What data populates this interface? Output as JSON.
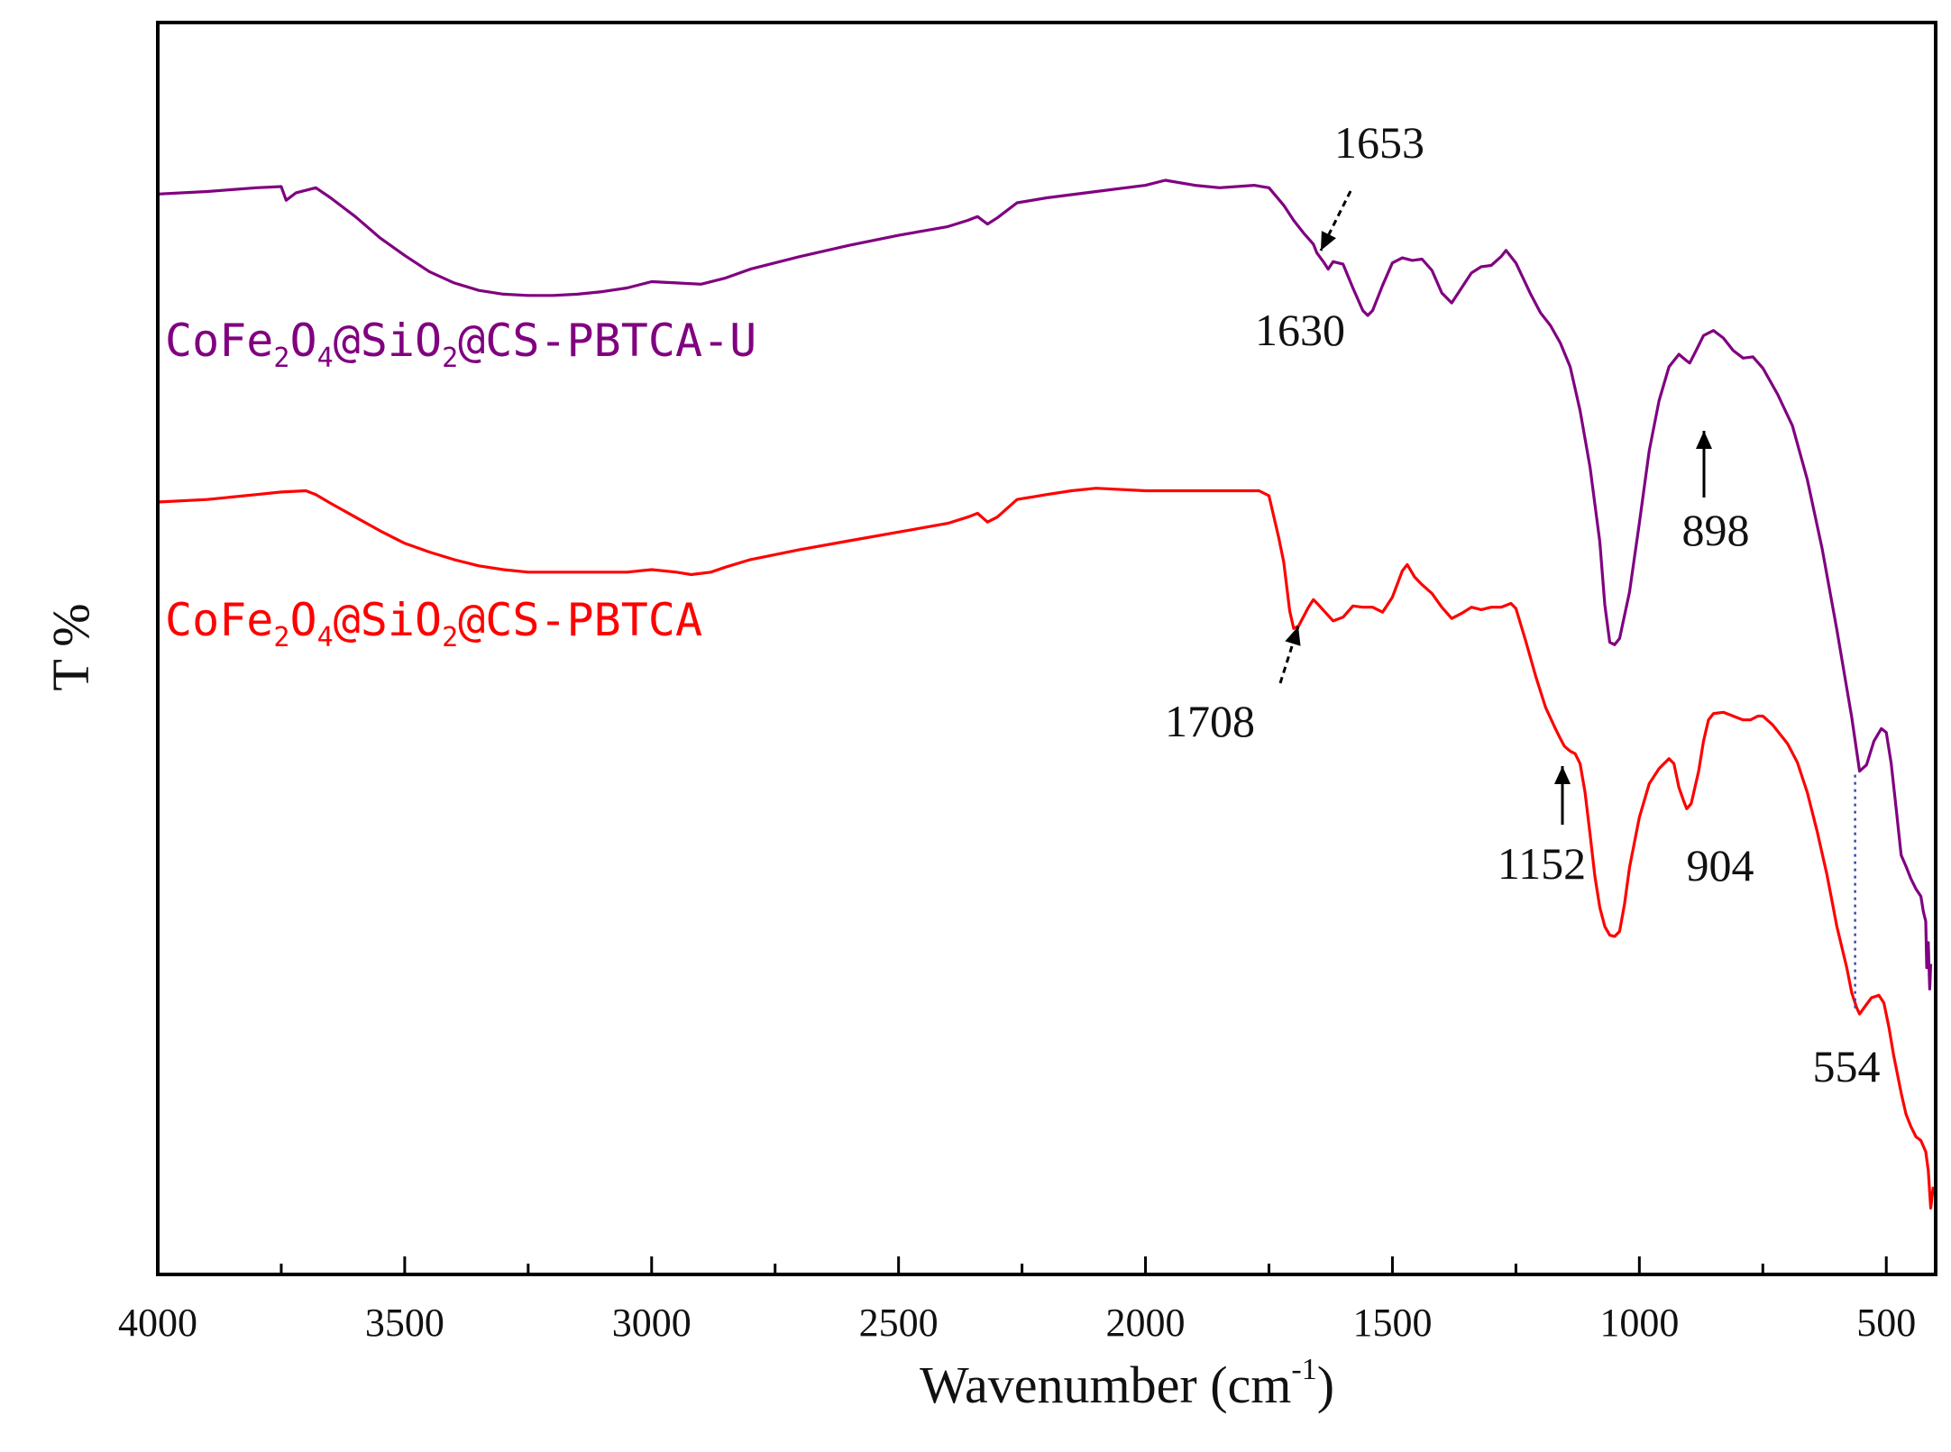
{
  "chart_data": {
    "type": "line",
    "title": "",
    "xlabel": "Wavenumber (cm",
    "xlabel_sup": "-1",
    "xlabel_close": ")",
    "ylabel": "T %",
    "xlim": [
      4000,
      400
    ],
    "x_reversed": true,
    "ylim": [
      0,
      100
    ],
    "y_ticks_shown": false,
    "x_ticks": [
      4000,
      3500,
      3000,
      2500,
      2000,
      1500,
      1000,
      500
    ],
    "x_tick_labels": [
      "4000",
      "3500",
      "3000",
      "2500",
      "2000",
      "1500",
      "1000",
      "500"
    ],
    "series": [
      {
        "name": "CoFe2O4@SiO2@CS-PBTCA-U",
        "label_parts": [
          "CoFe",
          "2",
          "O",
          "4",
          "@SiO",
          "2",
          "@CS-PBTCA-U"
        ],
        "color": "#800080",
        "points": [
          [
            4000,
            86.3
          ],
          [
            3900,
            86.5
          ],
          [
            3800,
            86.8
          ],
          [
            3750,
            86.9
          ],
          [
            3740,
            85.8
          ],
          [
            3720,
            86.4
          ],
          [
            3680,
            86.8
          ],
          [
            3650,
            86.0
          ],
          [
            3600,
            84.5
          ],
          [
            3550,
            82.8
          ],
          [
            3500,
            81.4
          ],
          [
            3450,
            80.1
          ],
          [
            3400,
            79.2
          ],
          [
            3350,
            78.6
          ],
          [
            3300,
            78.3
          ],
          [
            3250,
            78.2
          ],
          [
            3200,
            78.2
          ],
          [
            3150,
            78.3
          ],
          [
            3100,
            78.5
          ],
          [
            3050,
            78.8
          ],
          [
            3000,
            79.3
          ],
          [
            2950,
            79.2
          ],
          [
            2900,
            79.1
          ],
          [
            2850,
            79.6
          ],
          [
            2800,
            80.3
          ],
          [
            2700,
            81.3
          ],
          [
            2600,
            82.2
          ],
          [
            2500,
            83.0
          ],
          [
            2400,
            83.7
          ],
          [
            2360,
            84.2
          ],
          [
            2340,
            84.5
          ],
          [
            2320,
            83.9
          ],
          [
            2300,
            84.4
          ],
          [
            2260,
            85.6
          ],
          [
            2200,
            86.0
          ],
          [
            2100,
            86.5
          ],
          [
            2000,
            87.0
          ],
          [
            1960,
            87.4
          ],
          [
            1900,
            87.0
          ],
          [
            1850,
            86.8
          ],
          [
            1780,
            87.0
          ],
          [
            1750,
            86.8
          ],
          [
            1720,
            85.4
          ],
          [
            1700,
            84.2
          ],
          [
            1680,
            83.2
          ],
          [
            1660,
            82.3
          ],
          [
            1653,
            81.6
          ],
          [
            1640,
            80.9
          ],
          [
            1630,
            80.3
          ],
          [
            1620,
            80.9
          ],
          [
            1600,
            80.7
          ],
          [
            1580,
            78.8
          ],
          [
            1560,
            77.0
          ],
          [
            1550,
            76.6
          ],
          [
            1540,
            77.0
          ],
          [
            1520,
            79.0
          ],
          [
            1500,
            80.8
          ],
          [
            1480,
            81.2
          ],
          [
            1460,
            81.0
          ],
          [
            1440,
            81.1
          ],
          [
            1420,
            80.2
          ],
          [
            1400,
            78.4
          ],
          [
            1380,
            77.6
          ],
          [
            1360,
            78.8
          ],
          [
            1340,
            80.0
          ],
          [
            1320,
            80.5
          ],
          [
            1300,
            80.6
          ],
          [
            1280,
            81.3
          ],
          [
            1270,
            81.8
          ],
          [
            1250,
            80.8
          ],
          [
            1220,
            78.3
          ],
          [
            1200,
            76.8
          ],
          [
            1180,
            75.8
          ],
          [
            1160,
            74.4
          ],
          [
            1140,
            72.5
          ],
          [
            1120,
            69.0
          ],
          [
            1100,
            64.5
          ],
          [
            1080,
            58.5
          ],
          [
            1070,
            53.5
          ],
          [
            1060,
            50.5
          ],
          [
            1050,
            50.3
          ],
          [
            1040,
            50.8
          ],
          [
            1020,
            54.5
          ],
          [
            1000,
            60.0
          ],
          [
            980,
            65.8
          ],
          [
            960,
            69.8
          ],
          [
            940,
            72.5
          ],
          [
            920,
            73.5
          ],
          [
            905,
            73.0
          ],
          [
            898,
            72.8
          ],
          [
            885,
            73.8
          ],
          [
            870,
            75.0
          ],
          [
            850,
            75.4
          ],
          [
            830,
            74.8
          ],
          [
            810,
            73.8
          ],
          [
            790,
            73.2
          ],
          [
            770,
            73.3
          ],
          [
            750,
            72.4
          ],
          [
            720,
            70.3
          ],
          [
            690,
            67.8
          ],
          [
            660,
            63.5
          ],
          [
            630,
            58.0
          ],
          [
            600,
            51.5
          ],
          [
            570,
            44.5
          ],
          [
            554,
            40.2
          ],
          [
            540,
            40.7
          ],
          [
            525,
            42.6
          ],
          [
            510,
            43.6
          ],
          [
            500,
            43.3
          ],
          [
            490,
            40.8
          ],
          [
            480,
            37.2
          ],
          [
            470,
            33.5
          ],
          [
            460,
            32.6
          ],
          [
            450,
            31.6
          ],
          [
            440,
            30.8
          ],
          [
            430,
            30.2
          ],
          [
            425,
            29.0
          ],
          [
            420,
            28.2
          ],
          [
            418,
            24.5
          ],
          [
            415,
            26.5
          ],
          [
            412,
            22.8
          ],
          [
            410,
            24.8
          ]
        ]
      },
      {
        "name": "CoFe2O4@SiO2@CS-PBTCA",
        "label_parts": [
          "CoFe",
          "2",
          "O",
          "4",
          "@SiO",
          "2",
          "@CS-PBTCA"
        ],
        "color": "#ff0000",
        "points": [
          [
            4000,
            61.7
          ],
          [
            3900,
            61.9
          ],
          [
            3800,
            62.3
          ],
          [
            3750,
            62.5
          ],
          [
            3700,
            62.6
          ],
          [
            3680,
            62.3
          ],
          [
            3650,
            61.6
          ],
          [
            3600,
            60.5
          ],
          [
            3550,
            59.4
          ],
          [
            3500,
            58.4
          ],
          [
            3450,
            57.7
          ],
          [
            3400,
            57.1
          ],
          [
            3350,
            56.6
          ],
          [
            3300,
            56.3
          ],
          [
            3250,
            56.1
          ],
          [
            3200,
            56.1
          ],
          [
            3150,
            56.1
          ],
          [
            3100,
            56.1
          ],
          [
            3050,
            56.1
          ],
          [
            3000,
            56.3
          ],
          [
            2950,
            56.1
          ],
          [
            2920,
            55.9
          ],
          [
            2880,
            56.1
          ],
          [
            2850,
            56.5
          ],
          [
            2800,
            57.1
          ],
          [
            2700,
            57.9
          ],
          [
            2600,
            58.6
          ],
          [
            2500,
            59.3
          ],
          [
            2400,
            60.0
          ],
          [
            2360,
            60.5
          ],
          [
            2340,
            60.8
          ],
          [
            2320,
            60.1
          ],
          [
            2300,
            60.5
          ],
          [
            2260,
            61.9
          ],
          [
            2200,
            62.3
          ],
          [
            2150,
            62.6
          ],
          [
            2100,
            62.8
          ],
          [
            2000,
            62.6
          ],
          [
            1900,
            62.6
          ],
          [
            1800,
            62.6
          ],
          [
            1770,
            62.6
          ],
          [
            1750,
            62.2
          ],
          [
            1740,
            60.5
          ],
          [
            1730,
            58.8
          ],
          [
            1720,
            56.9
          ],
          [
            1708,
            53.0
          ],
          [
            1700,
            51.6
          ],
          [
            1690,
            51.8
          ],
          [
            1670,
            53.3
          ],
          [
            1660,
            53.9
          ],
          [
            1650,
            53.5
          ],
          [
            1620,
            52.2
          ],
          [
            1600,
            52.5
          ],
          [
            1580,
            53.4
          ],
          [
            1560,
            53.3
          ],
          [
            1540,
            53.3
          ],
          [
            1520,
            52.9
          ],
          [
            1500,
            54.1
          ],
          [
            1480,
            56.2
          ],
          [
            1470,
            56.7
          ],
          [
            1455,
            55.7
          ],
          [
            1440,
            55.1
          ],
          [
            1420,
            54.4
          ],
          [
            1400,
            53.3
          ],
          [
            1380,
            52.4
          ],
          [
            1360,
            52.8
          ],
          [
            1340,
            53.3
          ],
          [
            1320,
            53.1
          ],
          [
            1300,
            53.3
          ],
          [
            1280,
            53.3
          ],
          [
            1260,
            53.6
          ],
          [
            1250,
            53.2
          ],
          [
            1230,
            50.6
          ],
          [
            1210,
            47.8
          ],
          [
            1190,
            45.3
          ],
          [
            1170,
            43.6
          ],
          [
            1160,
            42.8
          ],
          [
            1152,
            42.2
          ],
          [
            1140,
            41.8
          ],
          [
            1130,
            41.6
          ],
          [
            1120,
            40.8
          ],
          [
            1110,
            38.5
          ],
          [
            1100,
            35.2
          ],
          [
            1090,
            31.8
          ],
          [
            1080,
            29.3
          ],
          [
            1070,
            27.8
          ],
          [
            1060,
            27.1
          ],
          [
            1050,
            27.0
          ],
          [
            1040,
            27.4
          ],
          [
            1030,
            29.6
          ],
          [
            1020,
            32.5
          ],
          [
            1000,
            36.5
          ],
          [
            980,
            39.2
          ],
          [
            960,
            40.4
          ],
          [
            940,
            41.2
          ],
          [
            930,
            40.8
          ],
          [
            920,
            38.9
          ],
          [
            910,
            37.8
          ],
          [
            904,
            37.2
          ],
          [
            895,
            37.6
          ],
          [
            880,
            40.2
          ],
          [
            870,
            42.6
          ],
          [
            860,
            44.3
          ],
          [
            850,
            44.8
          ],
          [
            830,
            44.9
          ],
          [
            810,
            44.6
          ],
          [
            790,
            44.3
          ],
          [
            775,
            44.3
          ],
          [
            760,
            44.6
          ],
          [
            750,
            44.6
          ],
          [
            730,
            43.9
          ],
          [
            700,
            42.4
          ],
          [
            680,
            40.9
          ],
          [
            660,
            38.5
          ],
          [
            640,
            35.4
          ],
          [
            620,
            31.9
          ],
          [
            600,
            27.8
          ],
          [
            580,
            24.5
          ],
          [
            570,
            22.5
          ],
          [
            560,
            21.3
          ],
          [
            554,
            20.8
          ],
          [
            545,
            21.3
          ],
          [
            530,
            22.1
          ],
          [
            515,
            22.3
          ],
          [
            505,
            21.7
          ],
          [
            495,
            19.8
          ],
          [
            485,
            17.5
          ],
          [
            470,
            14.5
          ],
          [
            460,
            12.8
          ],
          [
            450,
            11.8
          ],
          [
            440,
            11.0
          ],
          [
            430,
            10.7
          ],
          [
            420,
            9.8
          ],
          [
            415,
            8.3
          ],
          [
            410,
            5.3
          ],
          [
            405,
            7.0
          ]
        ]
      }
    ],
    "annotations": [
      {
        "text": "1653",
        "series": 0,
        "x": 1653,
        "arrow": "dashed"
      },
      {
        "text": "1630",
        "series": 0,
        "x": 1630,
        "arrow": "none"
      },
      {
        "text": "898",
        "series": 0,
        "x": 898,
        "arrow": "solid"
      },
      {
        "text": "1708",
        "series": 1,
        "x": 1708,
        "arrow": "dashed"
      },
      {
        "text": "1152",
        "series": 1,
        "x": 1152,
        "arrow": "solid"
      },
      {
        "text": "904",
        "series": 1,
        "x": 904,
        "arrow": "none"
      },
      {
        "text": "554",
        "series": 1,
        "x": 554,
        "arrow": "none"
      }
    ],
    "reference_lines": [
      {
        "x": 554,
        "style": "dotted",
        "color": "#3a4aa8",
        "from_series": 0,
        "to_series": 1
      }
    ]
  }
}
